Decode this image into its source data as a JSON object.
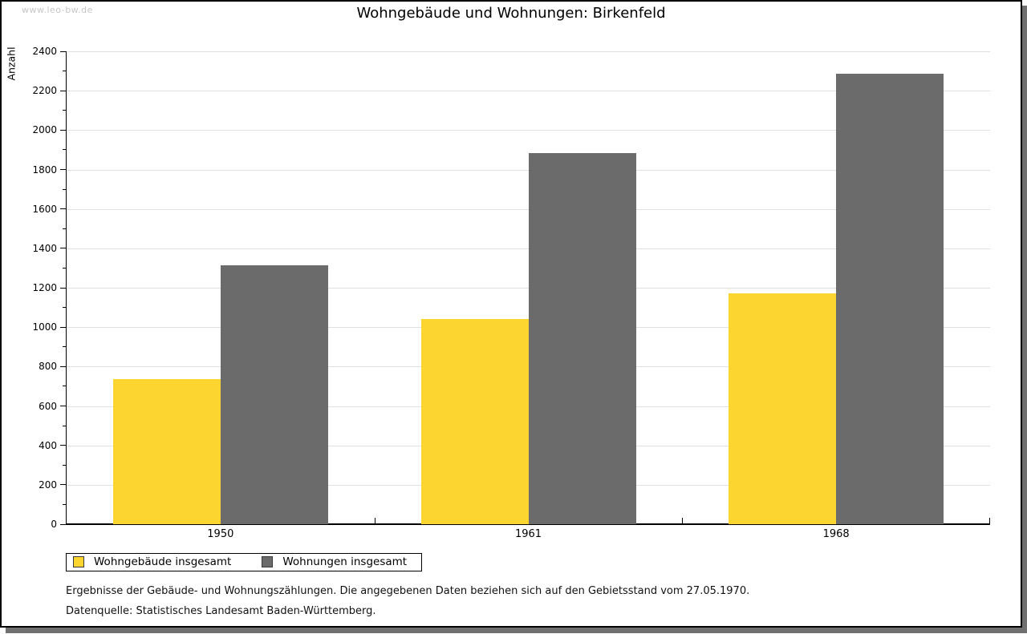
{
  "watermark": "www.leo-bw.de",
  "title": "Wohngebäude und Wohnungen: Birkenfeld",
  "chart_data": {
    "type": "bar",
    "categories": [
      "1950",
      "1961",
      "1968"
    ],
    "series": [
      {
        "name": "Wohngebäude insgesamt",
        "color": "#fcd530",
        "values": [
          735,
          1040,
          1170
        ]
      },
      {
        "name": "Wohnungen insgesamt",
        "color": "#6b6b6b",
        "values": [
          1315,
          1885,
          2285
        ]
      }
    ],
    "title": "Wohngebäude und Wohnungen: Birkenfeld",
    "xlabel": "",
    "ylabel": "Anzahl",
    "ylim": [
      0,
      2400
    ],
    "ytick_step": 200,
    "ytick_minor_step": 100,
    "grid": true,
    "legend_position": "bottom-left"
  },
  "footnotes": [
    "Ergebnisse der Gebäude- und Wohnungszählungen. Die angegebenen Daten beziehen sich auf den Gebietsstand vom 27.05.1970.",
    "Datenquelle: Statistisches Landesamt Baden-Württemberg."
  ]
}
